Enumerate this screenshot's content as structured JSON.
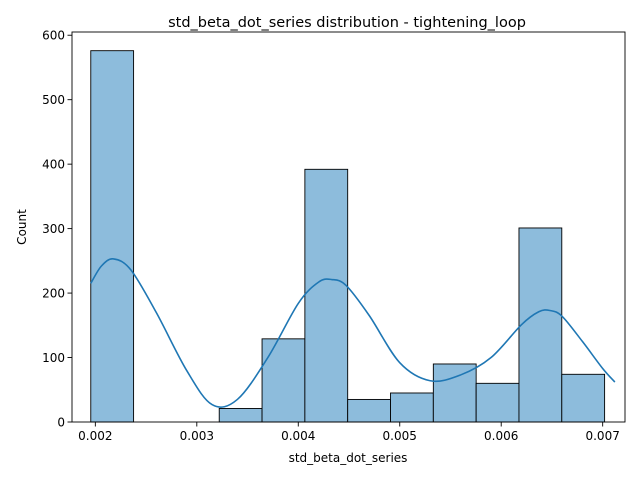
{
  "colors": {
    "bar_fill": "#8dbcdc",
    "kde_line": "#1f77b4"
  },
  "chart_data": {
    "type": "bar",
    "title": "std_beta_dot_series distribution - tightening_loop",
    "xlabel": "std_beta_dot_series",
    "ylabel": "Count",
    "xlim": [
      0.00177,
      0.00722
    ],
    "ylim": [
      0,
      605
    ],
    "xticks": [
      0.002,
      0.003,
      0.004,
      0.005,
      0.006,
      0.007
    ],
    "xtick_labels": [
      "0.002",
      "0.003",
      "0.004",
      "0.005",
      "0.006",
      "0.007"
    ],
    "yticks": [
      0,
      100,
      200,
      300,
      400,
      500,
      600
    ],
    "ytick_labels": [
      "0",
      "100",
      "200",
      "300",
      "400",
      "500",
      "600"
    ],
    "bin_start": 0.001955,
    "bin_width": 0.000422,
    "values": [
      576,
      0,
      0,
      21,
      129,
      392,
      35,
      45,
      90,
      60,
      301,
      74
    ],
    "kde": {
      "x": [
        0.001955,
        0.00206,
        0.00218,
        0.00235,
        0.0026,
        0.0029,
        0.00315,
        0.0034,
        0.0037,
        0.004,
        0.0042,
        0.00433,
        0.00447,
        0.0047,
        0.005,
        0.0053,
        0.0056,
        0.0059,
        0.0062,
        0.00637,
        0.00648,
        0.0066,
        0.0068,
        0.007,
        0.00712
      ],
      "y": [
        215,
        242,
        253,
        236,
        170,
        80,
        27,
        35,
        100,
        184,
        217,
        221,
        212,
        165,
        92,
        64,
        73,
        100,
        151,
        171,
        173,
        164,
        125,
        83,
        62
      ]
    },
    "grid": false
  }
}
